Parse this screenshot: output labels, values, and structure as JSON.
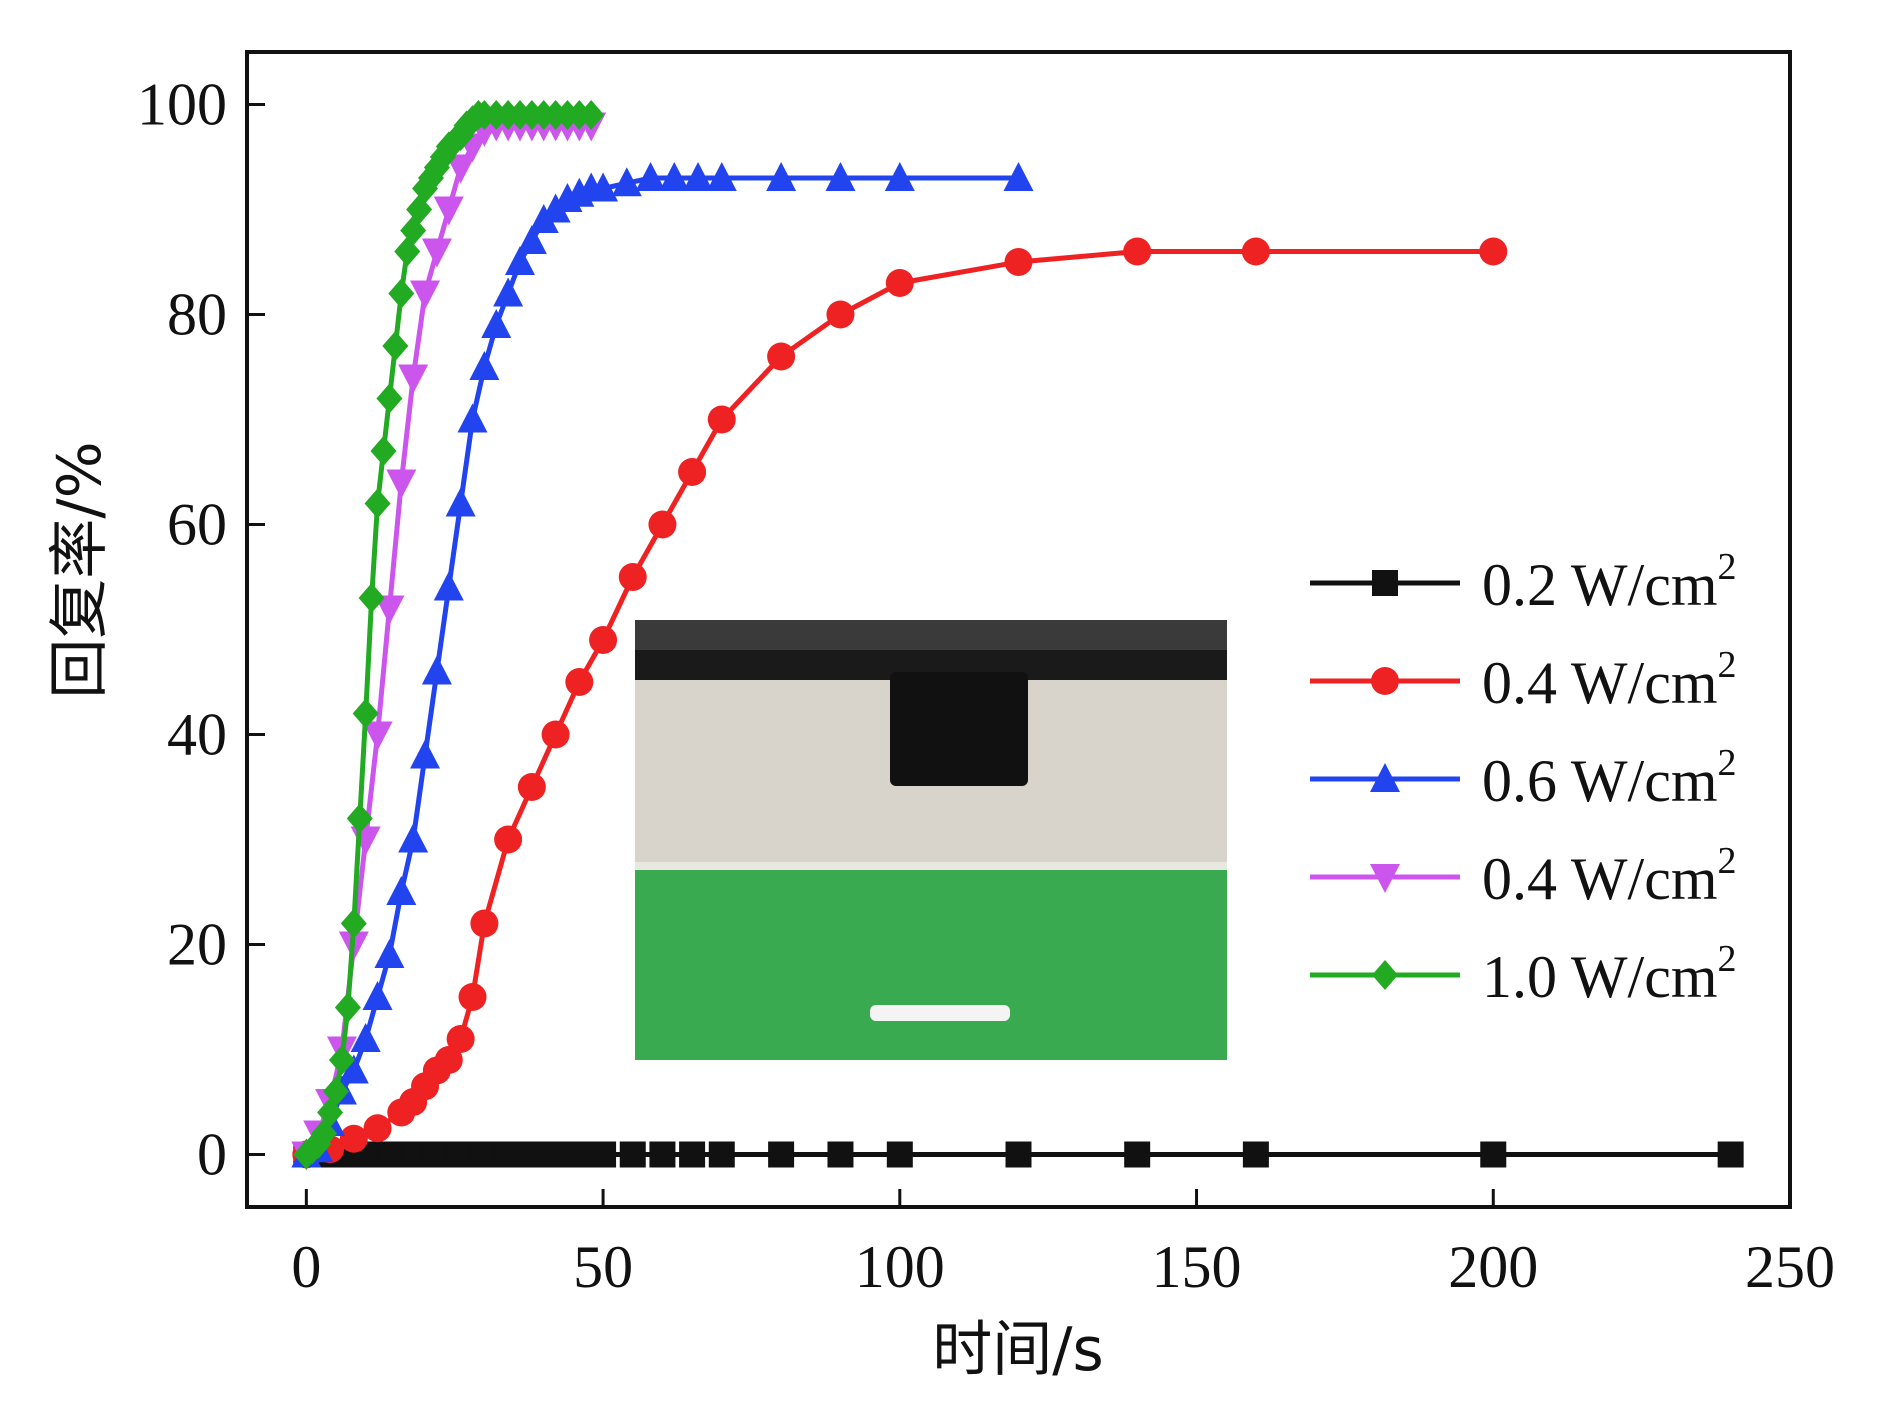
{
  "chart_data": {
    "type": "line",
    "xlabel": "时间/s",
    "ylabel": "回复率/%",
    "xlim": [
      -10,
      250
    ],
    "ylim": [
      -5,
      105
    ],
    "xticks": [
      0,
      50,
      100,
      150,
      200,
      250
    ],
    "yticks": [
      0,
      20,
      40,
      60,
      80,
      100
    ],
    "tick_labels_x": [
      "0",
      "50",
      "100",
      "150",
      "200",
      "250"
    ],
    "tick_labels_y": [
      "0",
      "20",
      "40",
      "60",
      "80",
      "100"
    ],
    "legend_position": "right",
    "inset": "photo of a black cylindrical sample above a green background",
    "series": [
      {
        "name": "0.2 W/cm",
        "name_superscript": "2",
        "color": "#111111",
        "marker": "square",
        "x": [
          0,
          2,
          4,
          6,
          8,
          10,
          12,
          14,
          16,
          18,
          20,
          22,
          24,
          26,
          28,
          30,
          32,
          34,
          36,
          38,
          40,
          42,
          44,
          46,
          48,
          50,
          55,
          60,
          65,
          70,
          80,
          90,
          100,
          120,
          140,
          160,
          200,
          240
        ],
        "y": [
          0,
          0,
          0,
          0,
          0,
          0,
          0,
          0,
          0,
          0,
          0,
          0,
          0,
          0,
          0,
          0,
          0,
          0,
          0,
          0,
          0,
          0,
          0,
          0,
          0,
          0,
          0,
          0,
          0,
          0,
          0,
          0,
          0,
          0,
          0,
          0,
          0,
          0
        ]
      },
      {
        "name": "0.4 W/cm",
        "name_superscript": "2",
        "color": "#ee2222",
        "marker": "circle",
        "x": [
          0,
          4,
          8,
          12,
          16,
          18,
          20,
          22,
          24,
          26,
          28,
          30,
          34,
          38,
          42,
          46,
          50,
          55,
          60,
          65,
          70,
          80,
          90,
          100,
          120,
          140,
          160,
          200
        ],
        "y": [
          0,
          0.5,
          1.5,
          2.5,
          4,
          5,
          6.5,
          8,
          9,
          11,
          15,
          22,
          30,
          35,
          40,
          45,
          49,
          55,
          60,
          65,
          70,
          76,
          80,
          83,
          85,
          86,
          86,
          86
        ]
      },
      {
        "name": "0.6 W/cm",
        "name_superscript": "2",
        "color": "#2244ee",
        "marker": "triangle-up",
        "x": [
          0,
          2,
          4,
          6,
          8,
          10,
          12,
          14,
          16,
          18,
          20,
          22,
          24,
          26,
          28,
          30,
          32,
          34,
          36,
          38,
          40,
          42,
          44,
          46,
          48,
          50,
          54,
          58,
          62,
          66,
          70,
          80,
          90,
          100,
          120
        ],
        "y": [
          0,
          0.5,
          3,
          6,
          8,
          11,
          15,
          19,
          25,
          30,
          38,
          46,
          54,
          62,
          70,
          75,
          79,
          82,
          85,
          87,
          89,
          90,
          91,
          91.5,
          92,
          92,
          92.5,
          93,
          93,
          93,
          93,
          93,
          93,
          93,
          93
        ]
      },
      {
        "name": "0.4 W/cm",
        "name_superscript": "2",
        "color": "#cc55ee",
        "marker": "triangle-down",
        "x": [
          0,
          2,
          4,
          6,
          8,
          10,
          12,
          14,
          16,
          18,
          20,
          22,
          24,
          26,
          28,
          30,
          32,
          34,
          36,
          38,
          40,
          42,
          44,
          46,
          48
        ],
        "y": [
          0,
          2,
          5,
          10,
          20,
          30,
          40,
          52,
          64,
          74,
          82,
          86,
          90,
          94,
          96,
          97.5,
          98,
          98,
          98,
          98,
          98,
          98,
          98,
          98,
          98
        ]
      },
      {
        "name": "1.0 W/cm",
        "name_superscript": "2",
        "color": "#22aa22",
        "marker": "diamond",
        "x": [
          0,
          1,
          2,
          3,
          4,
          5,
          6,
          7,
          8,
          9,
          10,
          11,
          12,
          13,
          14,
          15,
          16,
          17,
          18,
          19,
          20,
          21,
          22,
          23,
          24,
          25,
          26,
          27,
          28,
          29,
          30,
          32,
          34,
          36,
          38,
          40,
          42,
          44,
          46,
          48
        ],
        "y": [
          0,
          0.5,
          1,
          2,
          4,
          6,
          9,
          14,
          22,
          32,
          42,
          53,
          62,
          67,
          72,
          77,
          82,
          86,
          88,
          90,
          92,
          93,
          94,
          95,
          96,
          96.5,
          97,
          98,
          98.5,
          99,
          99,
          99,
          99,
          99,
          99,
          99,
          99,
          99,
          99,
          99
        ]
      }
    ]
  }
}
